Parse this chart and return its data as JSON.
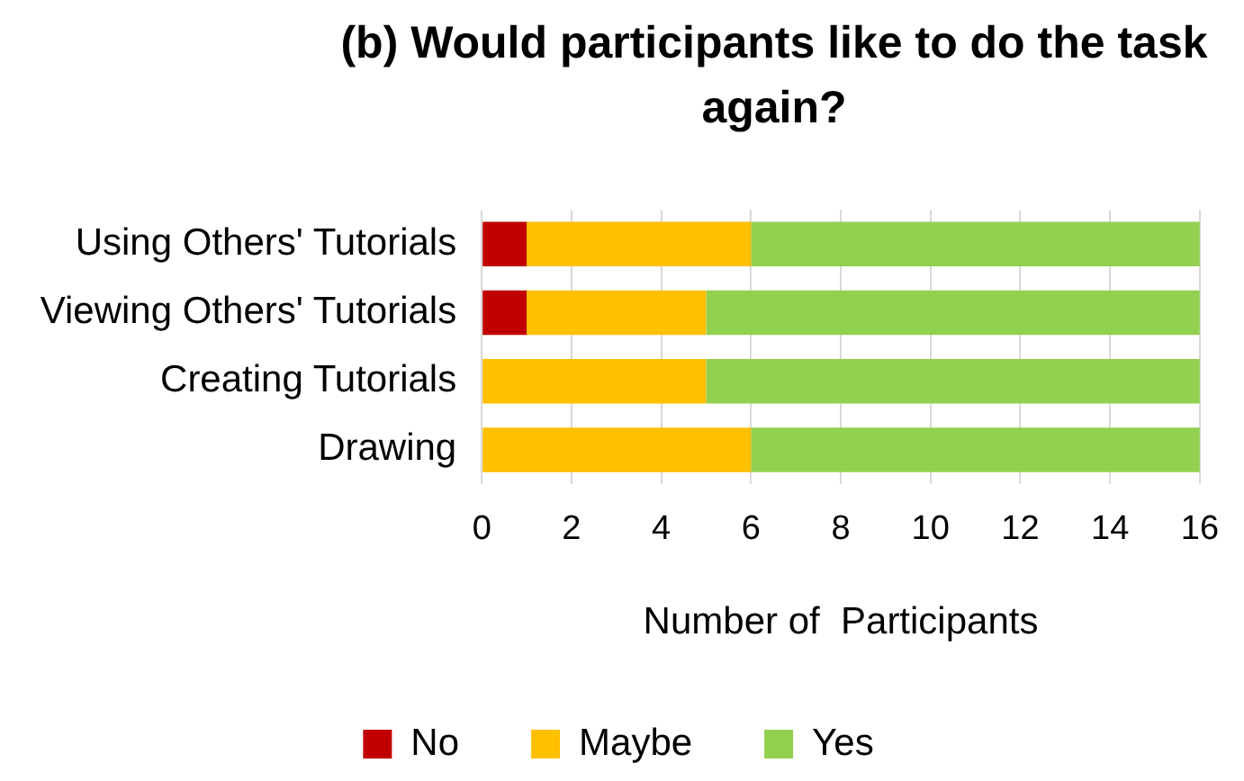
{
  "chart_data": {
    "type": "bar",
    "orientation": "horizontal",
    "stacked": true,
    "title": "(b) Would participants like to do the task again?",
    "xlabel": "Number of  Participants",
    "categories": [
      "Using Others' Tutorials",
      "Viewing Others' Tutorials",
      "Creating Tutorials",
      "Drawing"
    ],
    "series": [
      {
        "name": "No",
        "color": "#c00000",
        "values": [
          1,
          1,
          0,
          0
        ]
      },
      {
        "name": "Maybe",
        "color": "#ffc000",
        "values": [
          5,
          4,
          5,
          6
        ]
      },
      {
        "name": "Yes",
        "color": "#92d050",
        "values": [
          10,
          11,
          11,
          10
        ]
      }
    ],
    "xlim": [
      0,
      16
    ],
    "xticks": [
      0,
      2,
      4,
      6,
      8,
      10,
      12,
      14,
      16
    ],
    "grid": "x",
    "legend": "bottom"
  }
}
